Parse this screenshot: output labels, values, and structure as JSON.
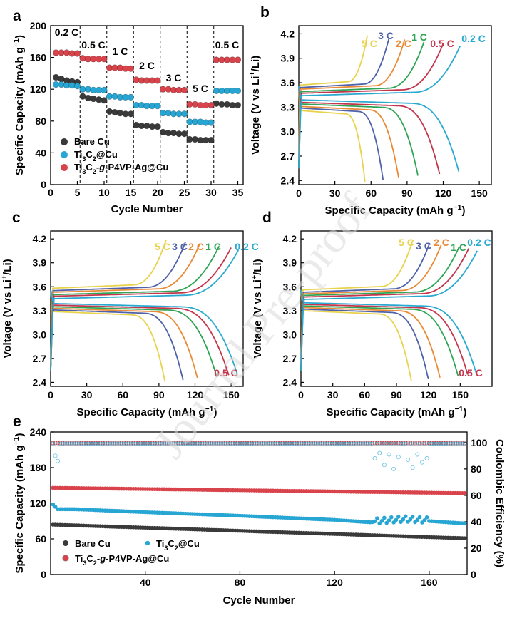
{
  "watermark": "Journal Pre-proof",
  "colors": {
    "bare": "#3a3a3a",
    "ti": "#27a6d3",
    "p4vp": "#d9434b",
    "rate_5C": "#e9d24c",
    "rate_3C": "#4e61a9",
    "rate_2C": "#e98a36",
    "rate_1C": "#2ea555",
    "rate_05C": "#c4344b",
    "rate_02C": "#29a9d0"
  },
  "chart_data": [
    {
      "id": "a",
      "panel_label": "a",
      "type": "scatter",
      "xlabel": "Cycle Number",
      "ylabel": "Specific Capacity (mAh g⁻¹)",
      "xlim": [
        0,
        36
      ],
      "ylim": [
        0,
        200
      ],
      "xticks": [
        "0",
        "5",
        "10",
        "15",
        "20",
        "25",
        "30",
        "35"
      ],
      "yticks": [
        "0",
        "40",
        "80",
        "120",
        "160",
        "200"
      ],
      "legend": [
        "Bare Cu",
        "Ti₃C₂@Cu",
        "Ti₃C₂-g-P4VP-Ag@Cu"
      ],
      "legend_rich": [
        [
          {
            "t": "Bare Cu"
          }
        ],
        [
          {
            "t": "Ti"
          },
          {
            "t": "3",
            "sub": true
          },
          {
            "t": "C"
          },
          {
            "t": "2",
            "sub": true
          },
          {
            "t": "@Cu"
          }
        ],
        [
          {
            "t": "Ti"
          },
          {
            "t": "3",
            "sub": true
          },
          {
            "t": "C"
          },
          {
            "t": "2",
            "sub": true
          },
          {
            "t": "-"
          },
          {
            "t": "g",
            "it": true
          },
          {
            "t": "-P4VP-Ag@Cu"
          }
        ]
      ],
      "rate_labels": [
        "0.2 C",
        "0.5 C",
        "1 C",
        "2 C",
        "3 C",
        "5 C",
        "0.5 C"
      ],
      "segment_boundaries": [
        5.5,
        10.5,
        15.5,
        20.5,
        25.5,
        30.5
      ],
      "series": [
        {
          "name": "Bare Cu",
          "key": "bare",
          "x": [
            1,
            2,
            3,
            4,
            5,
            6,
            7,
            8,
            9,
            10,
            11,
            12,
            13,
            14,
            15,
            16,
            17,
            18,
            19,
            20,
            21,
            22,
            23,
            24,
            25,
            26,
            27,
            28,
            29,
            30,
            31,
            32,
            33,
            34,
            35
          ],
          "values": [
            135,
            133,
            131,
            130,
            129,
            111,
            109,
            108,
            107,
            106,
            92,
            91,
            90,
            89,
            89,
            75,
            74,
            74,
            73,
            73,
            66,
            65,
            65,
            64,
            64,
            57,
            57,
            56,
            56,
            56,
            102,
            101,
            101,
            100,
            100
          ]
        },
        {
          "name": "Ti₃C₂@Cu",
          "key": "ti",
          "x": [
            1,
            2,
            3,
            4,
            5,
            6,
            7,
            8,
            9,
            10,
            11,
            12,
            13,
            14,
            15,
            16,
            17,
            18,
            19,
            20,
            21,
            22,
            23,
            24,
            25,
            26,
            27,
            28,
            29,
            30,
            31,
            32,
            33,
            34,
            35
          ],
          "values": [
            126,
            126,
            125,
            125,
            124,
            120,
            120,
            119,
            119,
            119,
            111,
            111,
            110,
            110,
            110,
            100,
            100,
            99,
            99,
            99,
            90,
            90,
            89,
            89,
            89,
            79,
            79,
            79,
            78,
            78,
            118,
            118,
            118,
            118,
            118
          ]
        },
        {
          "name": "Ti₃C₂-g-P4VP-Ag@Cu",
          "key": "p4vp",
          "x": [
            1,
            2,
            3,
            4,
            5,
            6,
            7,
            8,
            9,
            10,
            11,
            12,
            13,
            14,
            15,
            16,
            17,
            18,
            19,
            20,
            21,
            22,
            23,
            24,
            25,
            26,
            27,
            28,
            29,
            30,
            31,
            32,
            33,
            34,
            35
          ],
          "values": [
            166,
            166,
            166,
            165,
            165,
            159,
            158,
            158,
            158,
            158,
            147,
            147,
            147,
            146,
            146,
            132,
            131,
            131,
            131,
            131,
            120,
            120,
            119,
            119,
            119,
            101,
            101,
            100,
            100,
            100,
            157,
            157,
            157,
            157,
            157
          ]
        }
      ]
    },
    {
      "id": "b",
      "panel_label": "b",
      "type": "line",
      "xlabel": "Specific Capacity (mAh g⁻¹)",
      "ylabel": "Voltage (V vs Li⁺/Li)",
      "xlim": [
        0,
        160
      ],
      "ylim": [
        2.35,
        4.3
      ],
      "xticks": [
        "0",
        "30",
        "60",
        "90",
        "120",
        "150"
      ],
      "yticks": [
        "2.4",
        "2.7",
        "3.0",
        "3.3",
        "3.6",
        "3.9",
        "4.2"
      ],
      "series": [
        {
          "name": "5 C",
          "key": "rate_5C",
          "charge_capacity": 57,
          "discharge_capacity": 55,
          "charge_plateau": 3.57,
          "discharge_plateau": 3.26
        },
        {
          "name": "3 C",
          "key": "rate_3C",
          "charge_capacity": 75,
          "discharge_capacity": 70,
          "charge_plateau": 3.54,
          "discharge_plateau": 3.29
        },
        {
          "name": "2 C",
          "key": "rate_2C",
          "charge_capacity": 88,
          "discharge_capacity": 83,
          "charge_plateau": 3.52,
          "discharge_plateau": 3.31
        },
        {
          "name": "1 C",
          "key": "rate_1C",
          "charge_capacity": 104,
          "discharge_capacity": 99,
          "charge_plateau": 3.49,
          "discharge_plateau": 3.34
        },
        {
          "name": "0.5 C",
          "key": "rate_05C",
          "charge_capacity": 120,
          "discharge_capacity": 117,
          "charge_plateau": 3.47,
          "discharge_plateau": 3.36
        },
        {
          "name": "0.2 C",
          "key": "rate_02C",
          "charge_capacity": 134,
          "discharge_capacity": 133,
          "charge_plateau": 3.44,
          "discharge_plateau": 3.39
        }
      ]
    },
    {
      "id": "c",
      "panel_label": "c",
      "type": "line",
      "xlabel": "Specific Capacity (mAh g⁻¹)",
      "ylabel": "Voltage (V vs Li⁺/Li)",
      "xlim": [
        0,
        160
      ],
      "ylim": [
        2.35,
        4.3
      ],
      "xticks": [
        "0",
        "30",
        "60",
        "90",
        "120",
        "150"
      ],
      "yticks": [
        "2.4",
        "2.7",
        "3.0",
        "3.3",
        "3.6",
        "3.9",
        "4.2"
      ],
      "series": [
        {
          "name": "5 C",
          "key": "rate_5C",
          "charge_capacity": 96,
          "discharge_capacity": 95,
          "charge_plateau": 3.58,
          "discharge_plateau": 3.29
        },
        {
          "name": "3 C",
          "key": "rate_3C",
          "charge_capacity": 112,
          "discharge_capacity": 110,
          "charge_plateau": 3.55,
          "discharge_plateau": 3.31
        },
        {
          "name": "2 C",
          "key": "rate_2C",
          "charge_capacity": 124,
          "discharge_capacity": 122,
          "charge_plateau": 3.53,
          "discharge_plateau": 3.33
        },
        {
          "name": "1 C",
          "key": "rate_1C",
          "charge_capacity": 140,
          "discharge_capacity": 138,
          "charge_plateau": 3.5,
          "discharge_plateau": 3.35
        },
        {
          "name": "0.5 C",
          "key": "rate_05C",
          "charge_capacity": 150,
          "discharge_capacity": 148,
          "charge_plateau": 3.48,
          "discharge_plateau": 3.37
        },
        {
          "name": "0.2 C",
          "key": "rate_02C",
          "charge_capacity": 156,
          "discharge_capacity": 155,
          "charge_plateau": 3.45,
          "discharge_plateau": 3.39
        }
      ]
    },
    {
      "id": "d",
      "panel_label": "d",
      "type": "line",
      "xlabel": "Specific Capacity (mAh g⁻¹)",
      "ylabel": "Voltage (V vs Li⁺/Li)",
      "xlim": [
        0,
        180
      ],
      "ylim": [
        2.35,
        4.3
      ],
      "xticks": [
        "0",
        "30",
        "60",
        "90",
        "120",
        "150"
      ],
      "yticks": [
        "2.4",
        "2.7",
        "3.0",
        "3.3",
        "3.6",
        "3.9",
        "4.2"
      ],
      "series": [
        {
          "name": "5 C",
          "key": "rate_5C",
          "charge_capacity": 105,
          "discharge_capacity": 104,
          "charge_plateau": 3.56,
          "discharge_plateau": 3.3
        },
        {
          "name": "3 C",
          "key": "rate_3C",
          "charge_capacity": 121,
          "discharge_capacity": 120,
          "charge_plateau": 3.53,
          "discharge_plateau": 3.32
        },
        {
          "name": "2 C",
          "key": "rate_2C",
          "charge_capacity": 132,
          "discharge_capacity": 131,
          "charge_plateau": 3.51,
          "discharge_plateau": 3.34
        },
        {
          "name": "1 C",
          "key": "rate_1C",
          "charge_capacity": 149,
          "discharge_capacity": 148,
          "charge_plateau": 3.49,
          "discharge_plateau": 3.36
        },
        {
          "name": "0.5 C",
          "key": "rate_05C",
          "charge_capacity": 158,
          "discharge_capacity": 157,
          "charge_plateau": 3.47,
          "discharge_plateau": 3.38
        },
        {
          "name": "0.2 C",
          "key": "rate_02C",
          "charge_capacity": 166,
          "discharge_capacity": 165,
          "charge_plateau": 3.44,
          "discharge_plateau": 3.4
        }
      ]
    },
    {
      "id": "e",
      "panel_label": "e",
      "type": "scatter",
      "xlabel": "Cycle Number",
      "ylabel": "Specific Capacity (mAh g⁻¹)",
      "ylabel_right": "Coulombic Efficiency (%)",
      "xlim": [
        0,
        176
      ],
      "ylim": [
        0,
        240
      ],
      "ylim_right": [
        0,
        108
      ],
      "xticks": [
        "40",
        "80",
        "120",
        "160"
      ],
      "xtick_values": [
        40,
        80,
        120,
        160
      ],
      "yticks": [
        "0",
        "60",
        "120",
        "180",
        "240"
      ],
      "yticks_right": [
        "0",
        "20",
        "40",
        "60",
        "80",
        "100"
      ],
      "legend": [
        "Bare Cu",
        "Ti₃C₂@Cu",
        "Ti₃C₂-g-P4VP-Ag@Cu"
      ],
      "legend_rich": [
        [
          {
            "t": "Bare Cu"
          }
        ],
        [
          {
            "t": "Ti"
          },
          {
            "t": "3",
            "sub": true
          },
          {
            "t": "C"
          },
          {
            "t": "2",
            "sub": true
          },
          {
            "t": "@Cu"
          }
        ],
        [
          {
            "t": "Ti"
          },
          {
            "t": "3",
            "sub": true
          },
          {
            "t": "C"
          },
          {
            "t": "2",
            "sub": true
          },
          {
            "t": "-"
          },
          {
            "t": "g",
            "it": true
          },
          {
            "t": "-P4VP-Ag@Cu"
          }
        ]
      ],
      "cycles": 175,
      "capacity_trend": {
        "bare": {
          "start": 84,
          "end": 61
        },
        "p4vp": {
          "start": 146,
          "end": 137
        },
        "ti": {
          "start": 118,
          "end": 86,
          "knots": [
            [
              1,
              118
            ],
            [
              3,
              110
            ],
            [
              10,
              110
            ],
            [
              40,
              105
            ],
            [
              80,
              99
            ],
            [
              120,
              92
            ],
            [
              135,
              88
            ],
            [
              150,
              92
            ],
            [
              160,
              90
            ],
            [
              175,
              86
            ]
          ]
        }
      },
      "ce_trend": {
        "bare": 99.7,
        "p4vp": 99.6,
        "ti": 99.0,
        "ti_dips": [
          [
            2,
            90
          ],
          [
            3,
            86
          ],
          [
            137,
            88
          ],
          [
            139,
            92
          ],
          [
            141,
            83
          ],
          [
            143,
            91
          ],
          [
            145,
            80
          ],
          [
            147,
            89
          ],
          [
            151,
            87
          ],
          [
            153,
            81
          ],
          [
            155,
            91
          ],
          [
            157,
            85
          ],
          [
            159,
            88
          ]
        ]
      }
    }
  ]
}
